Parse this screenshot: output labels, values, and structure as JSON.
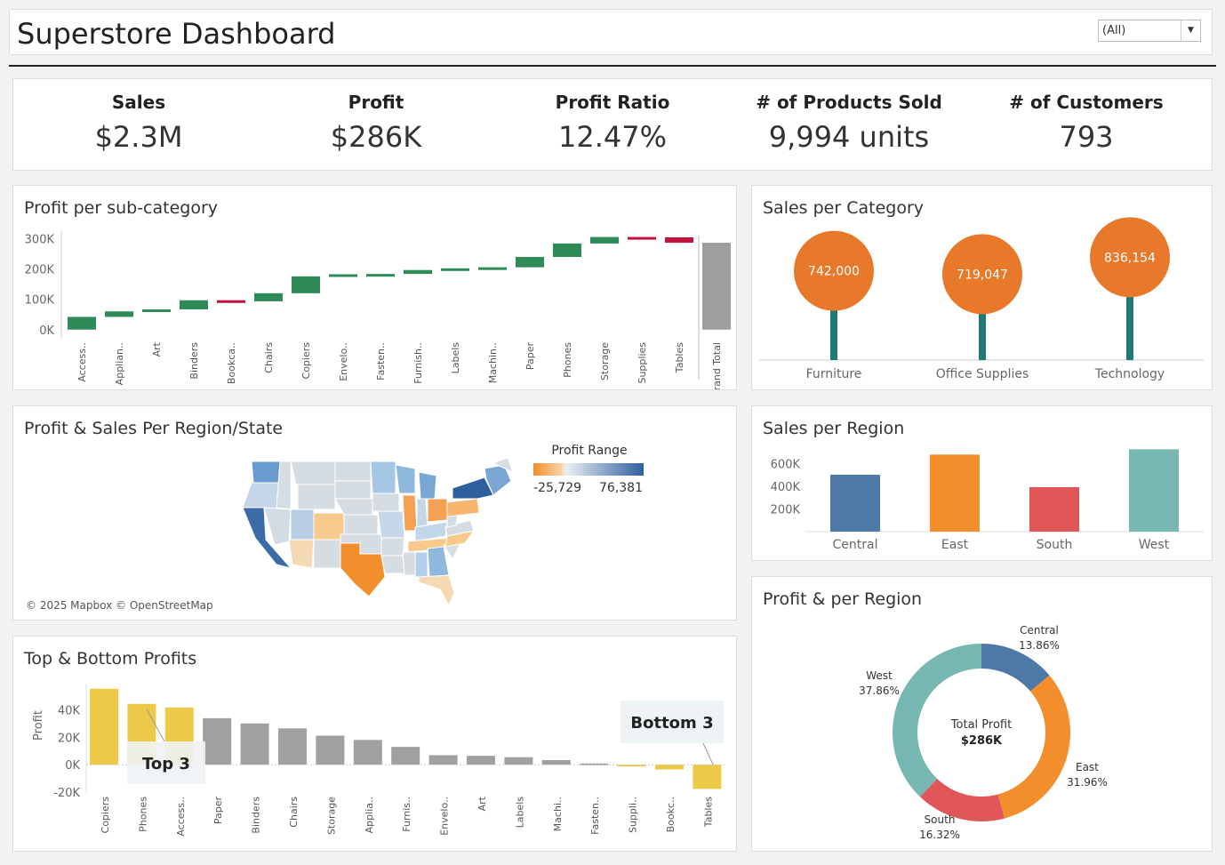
{
  "header": {
    "title": "Superstore Dashboard",
    "filter_value": "(All)"
  },
  "kpis": [
    {
      "label": "Sales",
      "value": "$2.3M"
    },
    {
      "label": "Profit",
      "value": "$286K"
    },
    {
      "label": "Profit Ratio",
      "value": "12.47%"
    },
    {
      "label": "# of Products Sold",
      "value": "9,994 units"
    },
    {
      "label": "# of Customers",
      "value": "793"
    }
  ],
  "colors": {
    "positive": "#2e8b57",
    "negative": "#c0143c",
    "total": "#9e9e9e",
    "orange": "#e8792b",
    "teal": "#1f7a75",
    "yellow": "#edc948",
    "gray": "#a0a0a0",
    "central": "#4e79a7",
    "east": "#f28e2b",
    "south": "#e15759",
    "west": "#76b7b2"
  },
  "chart_data": [
    {
      "id": "waterfall",
      "type": "bar",
      "title": "Profit per sub-category",
      "categories": [
        "Access..",
        "Applian..",
        "Art",
        "Binders",
        "Bookca..",
        "Chairs",
        "Copiers",
        "Envelo..",
        "Fasten..",
        "Furnish..",
        "Labels",
        "Machin..",
        "Paper",
        "Phones",
        "Storage",
        "Supplies",
        "Tables",
        "Grand Total"
      ],
      "values": [
        41937,
        18138,
        6528,
        30222,
        -3473,
        26590,
        55618,
        6964,
        950,
        13059,
        5546,
        3385,
        34054,
        44516,
        21279,
        -1189,
        -17725,
        286397
      ],
      "yticks": [
        "300K",
        "200K",
        "100K",
        "0K"
      ],
      "ylim": [
        -30000,
        310000
      ]
    },
    {
      "id": "category",
      "type": "bar",
      "title": "Sales per Category",
      "categories": [
        "Furniture",
        "Office Supplies",
        "Technology"
      ],
      "values": [
        742000,
        719047,
        836154
      ],
      "value_labels": [
        "742,000",
        "719,047",
        "836,154"
      ]
    },
    {
      "id": "region_sales",
      "type": "bar",
      "title": "Sales per Region",
      "categories": [
        "Central",
        "East",
        "South",
        "West"
      ],
      "values": [
        501240,
        678781,
        391722,
        725458
      ],
      "yticks": [
        "600K",
        "400K",
        "200K"
      ],
      "ylim": [
        0,
        760000
      ]
    },
    {
      "id": "top_bottom",
      "type": "bar",
      "title": "Top & Bottom Profits",
      "ylabel": "Profit",
      "categories": [
        "Copiers",
        "Phones",
        "Access..",
        "Paper",
        "Binders",
        "Chairs",
        "Storage",
        "Applia..",
        "Furnis..",
        "Envelo..",
        "Art",
        "Labels",
        "Machi..",
        "Fasten..",
        "Suppli..",
        "Bookc..",
        "Tables"
      ],
      "values": [
        55618,
        44516,
        41937,
        34054,
        30222,
        26590,
        21279,
        18138,
        13059,
        6964,
        6528,
        5546,
        3385,
        950,
        -1189,
        -3473,
        -17725
      ],
      "yticks": [
        "40K",
        "20K",
        "0K",
        "-20K"
      ],
      "ylim": [
        -22000,
        60000
      ],
      "annotations": [
        "Top 3",
        "Bottom 3"
      ]
    },
    {
      "id": "region_profit",
      "type": "pie",
      "title": "Profit & per Region",
      "center_label": "Total Profit",
      "center_value": "$286K",
      "slices": [
        {
          "name": "Central",
          "percent": 13.86,
          "label": "13.86%"
        },
        {
          "name": "East",
          "percent": 31.96,
          "label": "31.96%"
        },
        {
          "name": "South",
          "percent": 16.32,
          "label": "16.32%"
        },
        {
          "name": "West",
          "percent": 37.86,
          "label": "37.86%"
        }
      ]
    }
  ],
  "map": {
    "title": "Profit & Sales Per Region/State",
    "legend_title": "Profit Range",
    "legend_min": "-25,729",
    "legend_max": "76,381",
    "attribution": "© 2025 Mapbox © OpenStreetMap"
  }
}
